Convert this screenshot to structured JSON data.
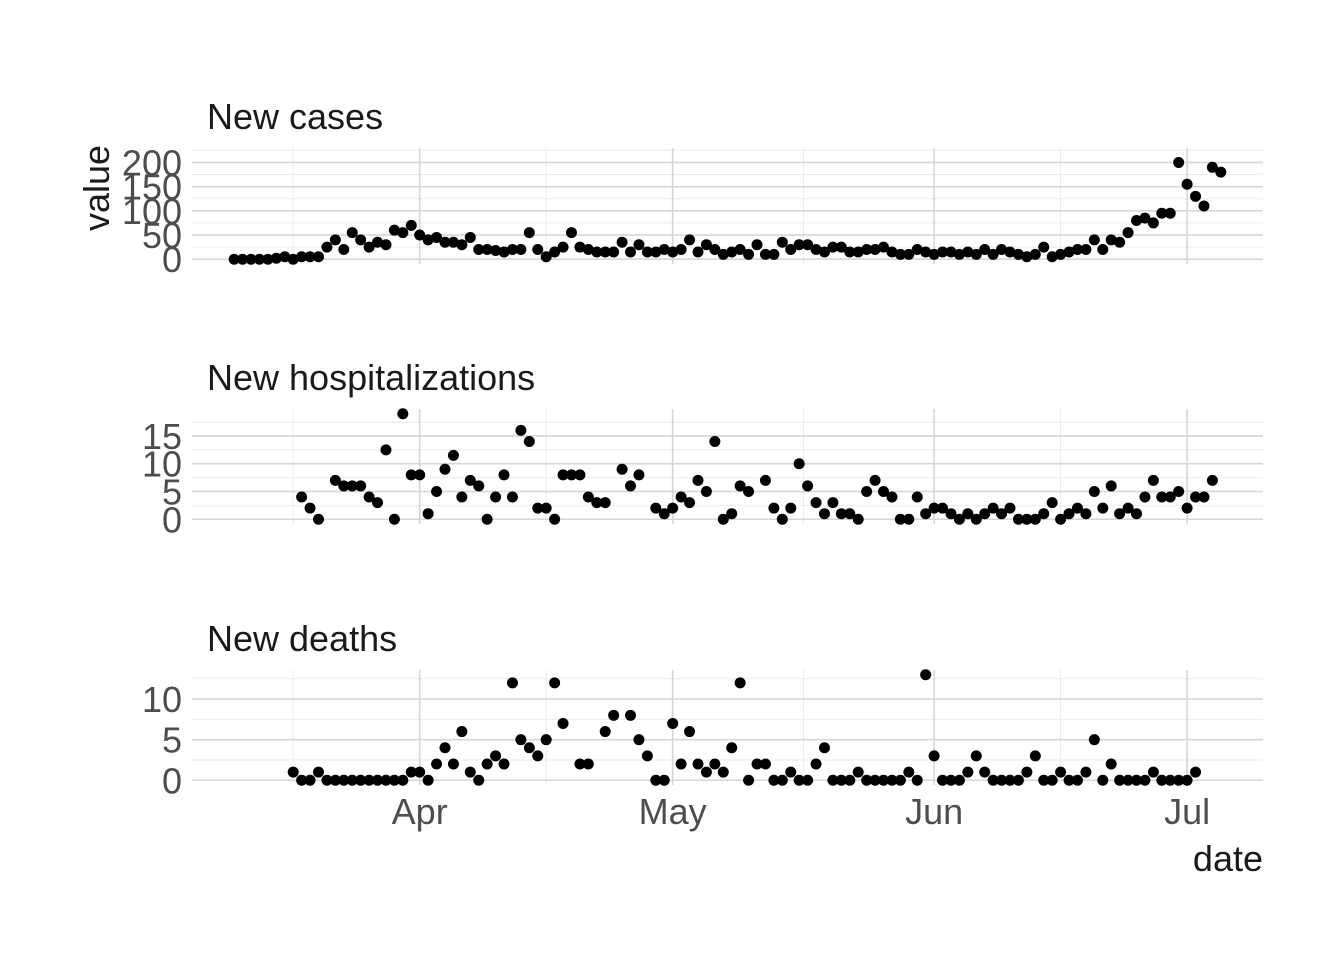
{
  "chart_data": {
    "type": "scatter",
    "xlabel": "date",
    "ylabel": "value",
    "x_axis": {
      "type": "date",
      "range": [
        "2020-03-05",
        "2020-07-10"
      ],
      "ticks": [
        {
          "date": "2020-04-01",
          "label": "Apr"
        },
        {
          "date": "2020-05-01",
          "label": "May"
        },
        {
          "date": "2020-06-01",
          "label": "Jun"
        },
        {
          "date": "2020-07-01",
          "label": "Jul"
        }
      ]
    },
    "grid": true,
    "legend": "none",
    "color": "#000000",
    "panels": [
      {
        "title": "New cases",
        "ylim": [
          0,
          220
        ],
        "yticks": [
          0,
          50,
          100,
          150,
          200
        ],
        "start_date": "2020-03-10",
        "values": [
          0,
          0,
          0,
          0,
          0,
          2,
          5,
          0,
          5,
          5,
          5,
          25,
          40,
          20,
          55,
          40,
          25,
          35,
          30,
          60,
          55,
          70,
          50,
          40,
          45,
          35,
          35,
          30,
          45,
          20,
          20,
          18,
          15,
          20,
          20,
          55,
          20,
          5,
          15,
          25,
          55,
          25,
          20,
          15,
          15,
          15,
          35,
          15,
          30,
          15,
          15,
          20,
          15,
          20,
          40,
          15,
          30,
          20,
          10,
          15,
          20,
          10,
          30,
          10,
          10,
          35,
          20,
          30,
          30,
          20,
          15,
          25,
          25,
          15,
          15,
          20,
          20,
          25,
          15,
          10,
          10,
          20,
          15,
          10,
          15,
          15,
          10,
          15,
          10,
          20,
          10,
          20,
          15,
          10,
          5,
          10,
          25,
          5,
          10,
          15,
          20,
          20,
          40,
          20,
          40,
          35,
          55,
          80,
          85,
          75,
          95,
          95,
          200,
          155,
          130,
          110,
          190,
          180
        ]
      },
      {
        "title": "New hospitalizations",
        "ylim": [
          0,
          19
        ],
        "yticks": [
          0,
          5,
          10,
          15
        ],
        "start_date": "2020-03-18",
        "values": [
          4,
          2,
          0,
          null,
          7,
          6,
          6,
          6,
          4,
          3,
          12.5,
          0,
          19,
          8,
          8,
          1,
          5,
          9,
          11.5,
          4,
          7,
          6,
          0,
          4,
          8,
          4,
          16,
          14,
          2,
          2,
          0,
          8,
          8,
          8,
          4,
          3,
          3,
          null,
          9,
          6,
          8,
          null,
          2,
          1,
          2,
          4,
          3,
          7,
          5,
          14,
          0,
          1,
          6,
          5,
          null,
          7,
          2,
          0,
          2,
          10,
          6,
          3,
          1,
          3,
          1,
          1,
          0,
          5,
          7,
          5,
          4,
          0,
          0,
          4,
          1,
          2,
          2,
          1,
          0,
          1,
          0,
          1,
          2,
          1,
          2,
          0,
          0,
          0,
          1,
          3,
          0,
          1,
          2,
          1,
          5,
          2,
          6,
          1,
          2,
          1,
          4,
          7,
          4,
          4,
          5,
          2,
          4,
          4,
          7
        ]
      },
      {
        "title": "New deaths",
        "ylim": [
          0,
          13
        ],
        "yticks": [
          0,
          5,
          10
        ],
        "start_date": "2020-03-17",
        "values": [
          1,
          0,
          0,
          1,
          0,
          0,
          0,
          0,
          0,
          0,
          0,
          0,
          0,
          0,
          1,
          1,
          0,
          2,
          4,
          2,
          6,
          1,
          0,
          2,
          3,
          2,
          12,
          5,
          4,
          3,
          5,
          12,
          7,
          null,
          2,
          2,
          null,
          6,
          8,
          null,
          8,
          5,
          3,
          0,
          0,
          7,
          2,
          6,
          2,
          1,
          2,
          1,
          4,
          12,
          0,
          2,
          2,
          0,
          0,
          1,
          0,
          0,
          2,
          4,
          0,
          0,
          0,
          1,
          0,
          0,
          0,
          0,
          0,
          1,
          0,
          13,
          3,
          0,
          0,
          0,
          1,
          3,
          1,
          0,
          0,
          0,
          0,
          1,
          3,
          0,
          0,
          1,
          0,
          0,
          1,
          5,
          0,
          2,
          0,
          0,
          0,
          0,
          1,
          0,
          0,
          0,
          0,
          1
        ]
      }
    ]
  }
}
